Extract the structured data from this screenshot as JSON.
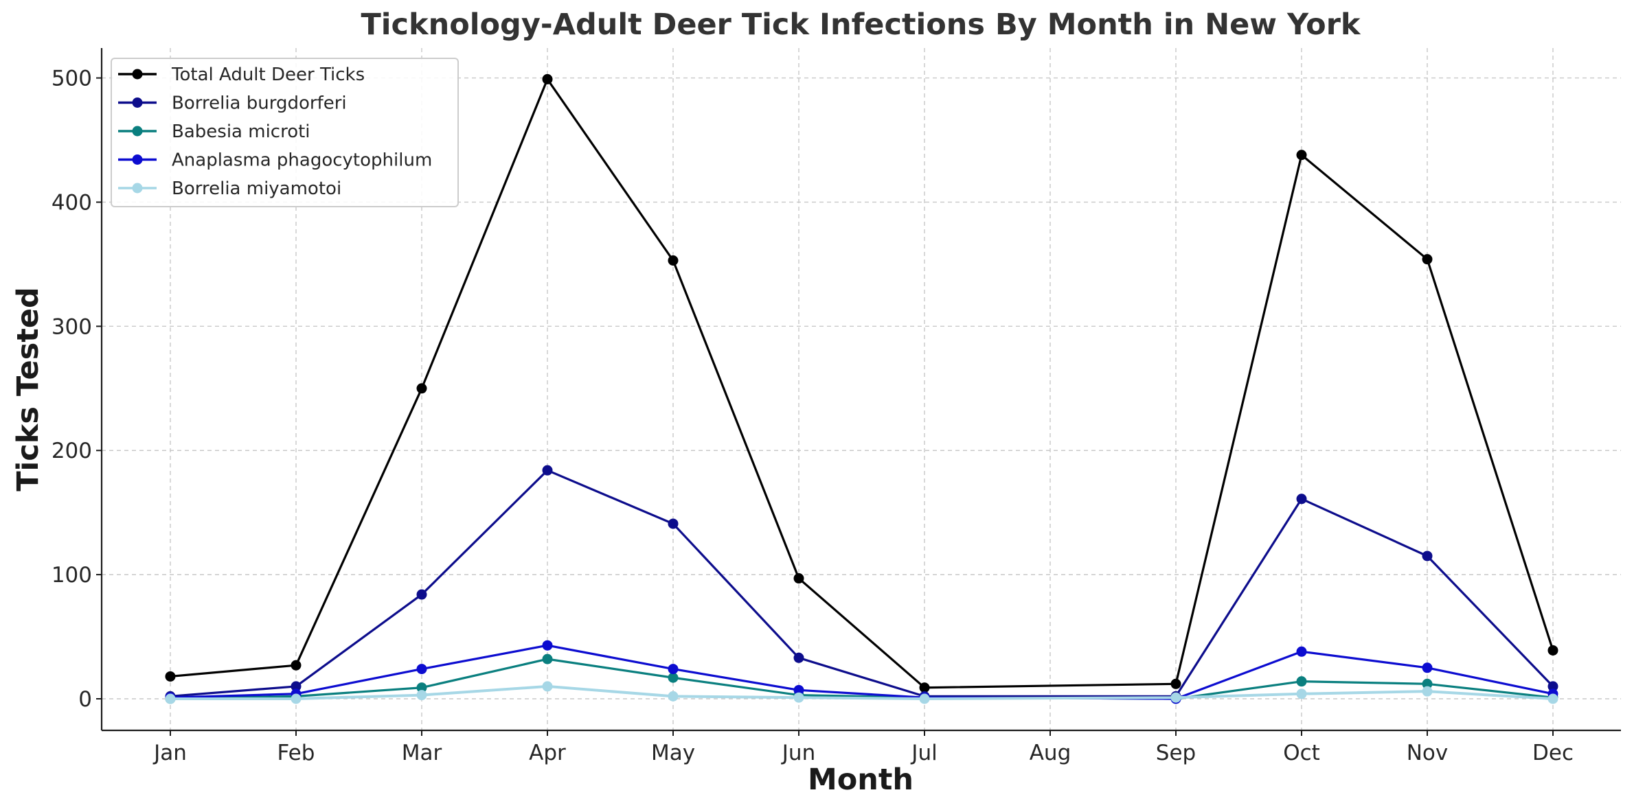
{
  "chart_data": {
    "type": "line",
    "title": "Ticknology-Adult Deer Tick Infections By Month in New York",
    "xlabel": "Month",
    "ylabel": "Ticks Tested",
    "categories": [
      "Jan",
      "Feb",
      "Mar",
      "Apr",
      "May",
      "Jun",
      "Jul",
      "Aug",
      "Sep",
      "Oct",
      "Nov",
      "Dec"
    ],
    "yticks": [
      0,
      100,
      200,
      300,
      400,
      500
    ],
    "ylim": [
      -25,
      525
    ],
    "grid": true,
    "legend_position": "top-left",
    "series": [
      {
        "name": "Total Adult Deer Ticks",
        "color": "#000000",
        "values": [
          18,
          27,
          250,
          499,
          353,
          97,
          9,
          null,
          12,
          438,
          354,
          39
        ]
      },
      {
        "name": "Borrelia burgdorferi",
        "color": "#0d0d8c",
        "values": [
          2,
          10,
          84,
          184,
          141,
          33,
          2,
          null,
          2,
          161,
          115,
          10
        ]
      },
      {
        "name": "Babesia microti",
        "color": "#0a7f7f",
        "values": [
          0,
          2,
          9,
          32,
          17,
          3,
          1,
          null,
          0,
          14,
          12,
          1
        ]
      },
      {
        "name": "Anaplasma phagocytophilum",
        "color": "#0c0cd0",
        "values": [
          1,
          4,
          24,
          43,
          24,
          7,
          1,
          null,
          0,
          38,
          25,
          4
        ]
      },
      {
        "name": "Borrelia miyamotoi",
        "color": "#a6d7e6",
        "values": [
          0,
          0,
          3,
          10,
          2,
          1,
          0,
          null,
          1,
          4,
          6,
          0
        ]
      }
    ]
  }
}
